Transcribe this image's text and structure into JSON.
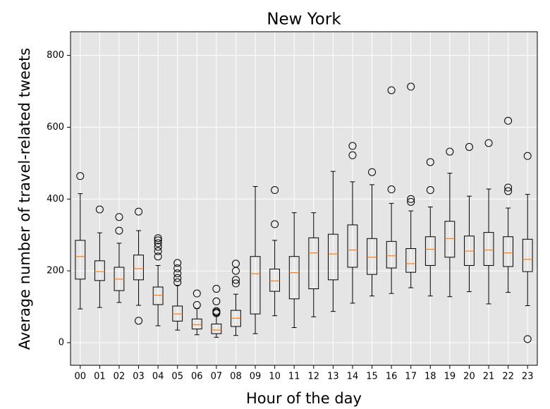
{
  "chart_data": {
    "type": "box",
    "title": "New York",
    "x_label": "Hour of the day",
    "y_label": "Average number of travel-related tweets",
    "categories": [
      "00",
      "01",
      "02",
      "03",
      "04",
      "05",
      "06",
      "07",
      "08",
      "09",
      "10",
      "11",
      "12",
      "13",
      "14",
      "15",
      "16",
      "17",
      "18",
      "19",
      "20",
      "21",
      "22",
      "23"
    ],
    "boxes": [
      {
        "low": 94,
        "q1": 177,
        "median": 240,
        "q3": 285,
        "high": 415,
        "fliers": [
          464
        ]
      },
      {
        "low": 98,
        "q1": 173,
        "median": 198,
        "q3": 228,
        "high": 306,
        "fliers": [
          371
        ]
      },
      {
        "low": 112,
        "q1": 145,
        "median": 177,
        "q3": 210,
        "high": 277,
        "fliers": [
          350,
          312
        ]
      },
      {
        "low": 104,
        "q1": 175,
        "median": 206,
        "q3": 244,
        "high": 312,
        "fliers": [
          365,
          61
        ]
      },
      {
        "low": 47,
        "q1": 106,
        "median": 132,
        "q3": 155,
        "high": 215,
        "fliers": [
          291,
          285,
          277,
          267,
          255,
          240
        ]
      },
      {
        "low": 35,
        "q1": 60,
        "median": 80,
        "q3": 102,
        "high": 160,
        "fliers": [
          222,
          207,
          193,
          180,
          168
        ]
      },
      {
        "low": 22,
        "q1": 38,
        "median": 50,
        "q3": 66,
        "high": 95,
        "fliers": [
          137,
          105
        ]
      },
      {
        "low": 15,
        "q1": 25,
        "median": 35,
        "q3": 52,
        "high": 75,
        "fliers": [
          150,
          115,
          88,
          82,
          85
        ]
      },
      {
        "low": 20,
        "q1": 45,
        "median": 68,
        "q3": 90,
        "high": 135,
        "fliers": [
          220,
          200,
          175,
          165
        ]
      },
      {
        "low": 25,
        "q1": 80,
        "median": 192,
        "q3": 240,
        "high": 435,
        "fliers": []
      },
      {
        "low": 75,
        "q1": 143,
        "median": 172,
        "q3": 205,
        "high": 285,
        "fliers": [
          425,
          330
        ]
      },
      {
        "low": 42,
        "q1": 122,
        "median": 195,
        "q3": 240,
        "high": 362,
        "fliers": []
      },
      {
        "low": 72,
        "q1": 150,
        "median": 250,
        "q3": 292,
        "high": 362,
        "fliers": []
      },
      {
        "low": 87,
        "q1": 175,
        "median": 247,
        "q3": 302,
        "high": 477,
        "fliers": []
      },
      {
        "low": 110,
        "q1": 210,
        "median": 258,
        "q3": 328,
        "high": 448,
        "fliers": [
          548,
          522
        ]
      },
      {
        "low": 130,
        "q1": 190,
        "median": 238,
        "q3": 290,
        "high": 440,
        "fliers": [
          475
        ]
      },
      {
        "low": 137,
        "q1": 208,
        "median": 242,
        "q3": 282,
        "high": 388,
        "fliers": [
          703,
          427
        ]
      },
      {
        "low": 153,
        "q1": 196,
        "median": 220,
        "q3": 262,
        "high": 367,
        "fliers": [
          713,
          400,
          392
        ]
      },
      {
        "low": 130,
        "q1": 215,
        "median": 260,
        "q3": 295,
        "high": 378,
        "fliers": [
          503,
          425
        ]
      },
      {
        "low": 128,
        "q1": 238,
        "median": 290,
        "q3": 338,
        "high": 472,
        "fliers": [
          532
        ]
      },
      {
        "low": 142,
        "q1": 215,
        "median": 255,
        "q3": 297,
        "high": 408,
        "fliers": [
          545
        ]
      },
      {
        "low": 108,
        "q1": 215,
        "median": 258,
        "q3": 307,
        "high": 428,
        "fliers": [
          556
        ]
      },
      {
        "low": 140,
        "q1": 212,
        "median": 250,
        "q3": 295,
        "high": 375,
        "fliers": [
          618,
          432,
          422
        ]
      },
      {
        "low": 103,
        "q1": 198,
        "median": 232,
        "q3": 288,
        "high": 413,
        "fliers": [
          520,
          10
        ]
      }
    ],
    "box_color": "#000000",
    "median_color": "#ff7f0e",
    "background": "#e5e5e5",
    "ylim": [
      -63,
      866
    ],
    "yticks": [
      0,
      200,
      400,
      600,
      800
    ],
    "grid": true
  }
}
